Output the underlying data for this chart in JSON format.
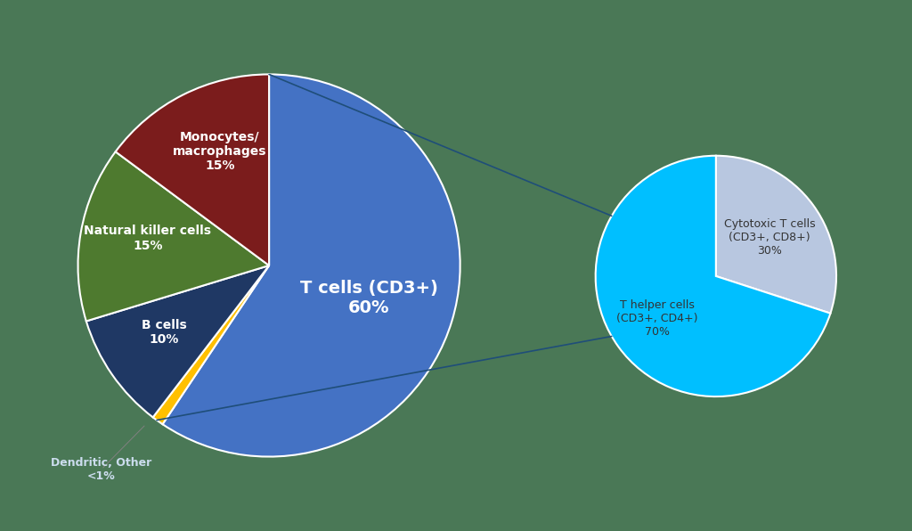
{
  "main_pie": {
    "labels": [
      "T cells (CD3+)\n60%",
      "Dendritic, Other\n<1%",
      "B cells\n10%",
      "Natural killer cells\n15%",
      "Monocytes/\nmacrophages\n15%"
    ],
    "values": [
      60,
      1,
      10,
      15,
      15
    ],
    "colors": [
      "#4472C4",
      "#FFC000",
      "#1F3864",
      "#4E7A2F",
      "#7B1C1C"
    ],
    "label_colors": [
      "white",
      "#555555",
      "white",
      "white",
      "white"
    ],
    "startangle": 90
  },
  "sub_pie": {
    "labels": [
      "Cytotoxic T cells\n(CD3+, CD8+)\n30%",
      "T helper cells\n(CD3+, CD4+)\n70%"
    ],
    "values": [
      30,
      70
    ],
    "colors": [
      "#B8C7E0",
      "#00BFFF"
    ],
    "label_colors": [
      "#333333",
      "#333333"
    ],
    "startangle": 90
  },
  "background_color": "#4A7856",
  "connector_color": "#1F4E79"
}
